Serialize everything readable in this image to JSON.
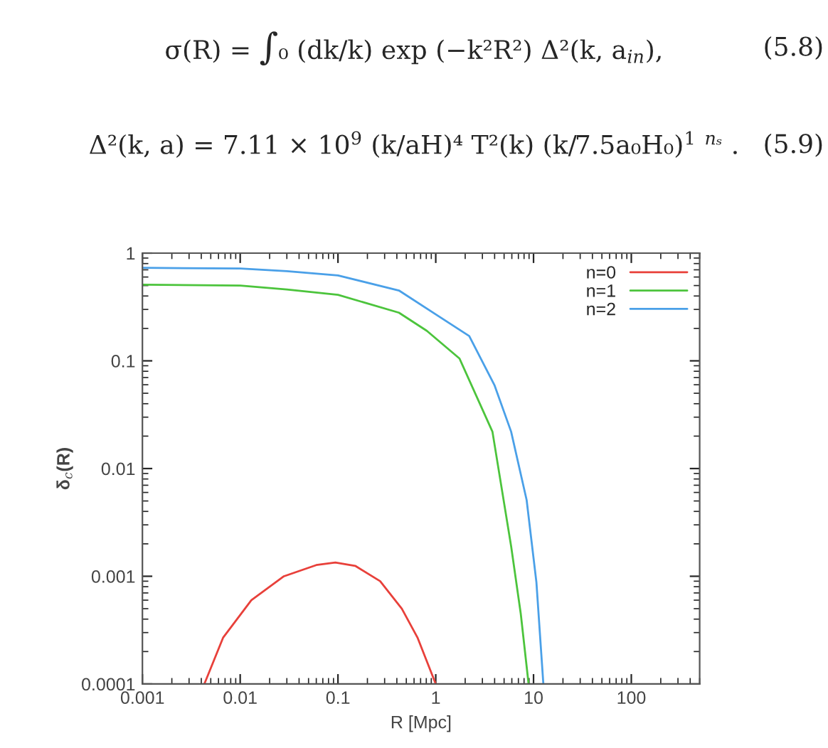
{
  "chart_data": {
    "type": "line",
    "annotations": [
      "σ(R) = ∫₀ (dk/k) exp (−k²R²) Δ²(k, a$_{in}$),",
      "(5.8)",
      "Δ²(k, a) = 7.11 × 10$^{9}$ (k/aH)⁴ T²(k) (k/7.5a₀H₀)$^{1}$ $^{nₛ}$ .",
      "(5.9)"
    ],
    "xlabel": "R [Mpc]",
    "ylabel": "δ$_{c}$(R)",
    "log": "xy",
    "grid": false,
    "legend": "top right",
    "xlim": [
      0.001,
      500
    ],
    "xticks": [
      0.001,
      0.01,
      0.1,
      1,
      10,
      100
    ],
    "ylim": [
      0.0001,
      1
    ],
    "yticks": [
      0.0001,
      0.001,
      0.01,
      0.1,
      1
    ],
    "series": [
      {
        "name": "n=0",
        "color": "#e8403a",
        "x": [
          0.0043,
          0.0067,
          0.013,
          0.028,
          0.06,
          0.094,
          0.15,
          0.27,
          0.45,
          0.65,
          1.0
        ],
        "values": [
          0.0001,
          0.00027,
          0.0006,
          0.001,
          0.00127,
          0.00134,
          0.00125,
          0.0009,
          0.0005,
          0.00027,
          0.0001
        ]
      },
      {
        "name": "n=1",
        "color": "#4cc43c",
        "x": [
          0.001,
          0.01,
          0.03,
          0.1,
          0.42,
          0.81,
          1.75,
          3.8,
          5.9,
          7.4,
          8.9
        ],
        "values": [
          0.51,
          0.5,
          0.46,
          0.41,
          0.28,
          0.19,
          0.105,
          0.022,
          0.0019,
          0.00045,
          0.0001
        ]
      },
      {
        "name": "n=2",
        "color": "#4aa0e8",
        "x": [
          0.001,
          0.01,
          0.03,
          0.1,
          0.42,
          1,
          2.2,
          4,
          5.9,
          8.5,
          10.7,
          12.6
        ],
        "values": [
          0.73,
          0.72,
          0.68,
          0.62,
          0.45,
          0.27,
          0.17,
          0.059,
          0.022,
          0.0051,
          0.00088,
          0.0001
        ]
      }
    ]
  }
}
